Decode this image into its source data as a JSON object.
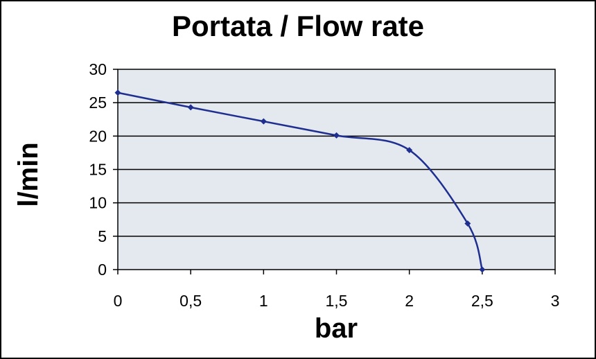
{
  "chart_data": {
    "type": "line",
    "title": "Portata / Flow rate",
    "xlabel": "bar",
    "ylabel": "l/min",
    "xlim": [
      0,
      3
    ],
    "ylim": [
      0,
      30
    ],
    "x_ticks": [
      0,
      0.5,
      1,
      1.5,
      2,
      2.5,
      3
    ],
    "x_tick_labels": [
      "0",
      "0,5",
      "1",
      "1,5",
      "2",
      "2,5",
      "3"
    ],
    "y_ticks": [
      0,
      5,
      10,
      15,
      20,
      25,
      30
    ],
    "y_tick_labels": [
      "0",
      "5",
      "10",
      "15",
      "20",
      "25",
      "30"
    ],
    "grid": "horizontal",
    "smooth": true,
    "series": [
      {
        "x": [
          0,
          0.5,
          1,
          1.5,
          2,
          2.4,
          2.5
        ],
        "y": [
          26.5,
          24.3,
          22.2,
          20.1,
          17.9,
          6.9,
          0
        ],
        "color": "#1f2f8f",
        "marker": "diamond"
      }
    ],
    "plot_background": "#e4e9f0"
  }
}
